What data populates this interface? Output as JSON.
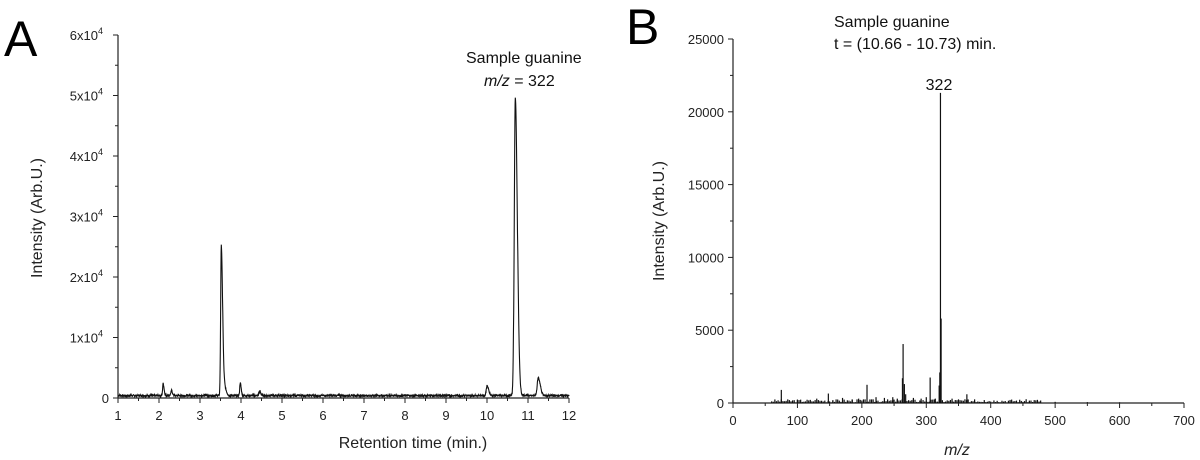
{
  "chart_data": [
    {
      "panel": "A",
      "type": "line",
      "xlabel": "Retention time (min.)",
      "ylabel": "Intensity (Arb.U.)",
      "xlim": [
        1,
        12
      ],
      "ylim": [
        0,
        60000
      ],
      "x_ticks": [
        1,
        2,
        3,
        4,
        5,
        6,
        7,
        8,
        9,
        10,
        11,
        12
      ],
      "y_ticks": [
        {
          "value": 0,
          "label": "0",
          "base": "",
          "exp": ""
        },
        {
          "value": 10000,
          "label": "",
          "base": "1x10",
          "exp": "4"
        },
        {
          "value": 20000,
          "label": "",
          "base": "2x10",
          "exp": "4"
        },
        {
          "value": 30000,
          "label": "",
          "base": "3x10",
          "exp": "4"
        },
        {
          "value": 40000,
          "label": "",
          "base": "4x10",
          "exp": "4"
        },
        {
          "value": 50000,
          "label": "",
          "base": "5x10",
          "exp": "4"
        },
        {
          "value": 60000,
          "label": "",
          "base": "6x10",
          "exp": "4"
        }
      ],
      "annotations": {
        "line1": "Sample guanine",
        "line2_italic": "m/z",
        "line2_rest": " = 322"
      },
      "baseline": 400,
      "peaks": [
        {
          "x": 2.1,
          "y": 2000,
          "w": 0.012
        },
        {
          "x": 2.3,
          "y": 900,
          "w": 0.012
        },
        {
          "x": 3.52,
          "y": 24800,
          "w": 0.016
        },
        {
          "x": 3.6,
          "y": 1400,
          "w": 0.02
        },
        {
          "x": 3.98,
          "y": 2100,
          "w": 0.012
        },
        {
          "x": 4.45,
          "y": 700,
          "w": 0.015
        },
        {
          "x": 10.0,
          "y": 1600,
          "w": 0.02
        },
        {
          "x": 10.69,
          "y": 49200,
          "w": 0.025
        },
        {
          "x": 11.25,
          "y": 2900,
          "w": 0.025
        }
      ]
    },
    {
      "panel": "B",
      "type": "bar",
      "xlabel_italic": "m/z",
      "ylabel": "Intensity (Arb.U.)",
      "xlim": [
        0,
        700
      ],
      "ylim": [
        0,
        25000
      ],
      "x_ticks": [
        0,
        100,
        200,
        300,
        400,
        500,
        600,
        700
      ],
      "y_ticks": [
        0,
        5000,
        10000,
        15000,
        20000,
        25000
      ],
      "annotations": {
        "line1": "Sample guanine",
        "line2": "t = (10.66 - 10.73) min.",
        "peak_label": "322"
      },
      "x": [
        75,
        100,
        130,
        148,
        155,
        170,
        185,
        195,
        208,
        222,
        235,
        248,
        255,
        263,
        264,
        266,
        268,
        280,
        292,
        300,
        306,
        314,
        320,
        321,
        322,
        323,
        340,
        350,
        363,
        375,
        390,
        410,
        430,
        460,
        500,
        550,
        600
      ],
      "values": [
        900,
        200,
        300,
        650,
        200,
        350,
        250,
        300,
        1250,
        400,
        350,
        400,
        300,
        1700,
        4050,
        1300,
        600,
        350,
        300,
        400,
        1750,
        300,
        1200,
        2100,
        21300,
        5800,
        300,
        250,
        600,
        250,
        200,
        150,
        150,
        100,
        80,
        60,
        50
      ]
    }
  ]
}
